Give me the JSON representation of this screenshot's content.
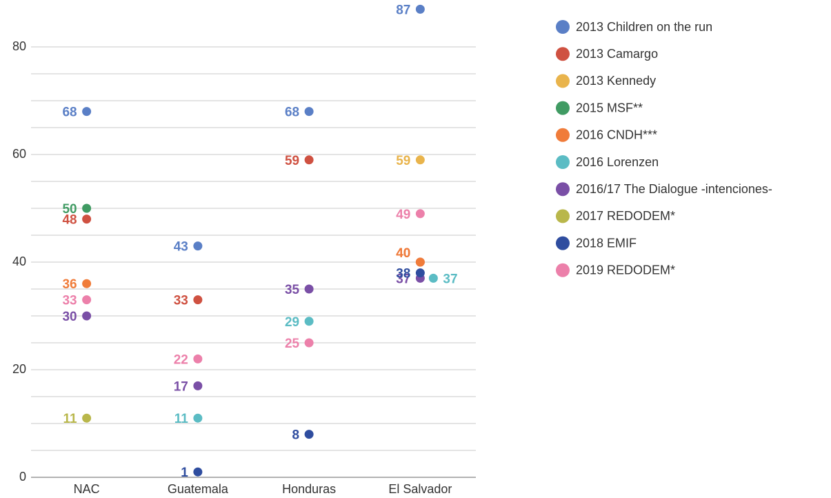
{
  "chart_data": {
    "type": "dot",
    "categories": [
      "NAC",
      "Guatemala",
      "Honduras",
      "El Salvador"
    ],
    "series": [
      {
        "name": "2013 Children on the run",
        "color": "#5a7fc6",
        "values": [
          68,
          43,
          68,
          87
        ]
      },
      {
        "name": "2013 Camargo",
        "color": "#cf5141",
        "values": [
          48,
          33,
          59,
          40
        ]
      },
      {
        "name": "2013 Kennedy",
        "color": "#e9b44c",
        "values": [
          null,
          null,
          null,
          59
        ]
      },
      {
        "name": "2015 MSF**",
        "color": "#409b63",
        "values": [
          50,
          null,
          null,
          null
        ]
      },
      {
        "name": "2016 CNDH***",
        "color": "#f07c3a",
        "values": [
          36,
          null,
          null,
          40
        ]
      },
      {
        "name": "2016 Lorenzen",
        "color": "#5bbcc4",
        "values": [
          null,
          11,
          29,
          37
        ]
      },
      {
        "name": "2016/17 The Dialogue -intenciones-",
        "color": "#7a4fa6",
        "values": [
          30,
          17,
          35,
          37
        ]
      },
      {
        "name": "2017 REDODEM*",
        "color": "#b9b74b",
        "values": [
          11,
          null,
          null,
          null
        ]
      },
      {
        "name": "2018 EMIF",
        "color": "#2f4d9f",
        "values": [
          null,
          1,
          8,
          38
        ]
      },
      {
        "name": "2019 REDODEM*",
        "color": "#ec80aa",
        "values": [
          33,
          22,
          25,
          49
        ]
      }
    ],
    "ylim": [
      0,
      88
    ],
    "yticks": [
      0,
      20,
      40,
      60,
      80
    ],
    "minor_yticks": [
      5,
      10,
      15,
      25,
      30,
      35,
      45,
      50,
      55,
      65,
      70,
      75
    ],
    "grid": true,
    "legend": "right"
  }
}
